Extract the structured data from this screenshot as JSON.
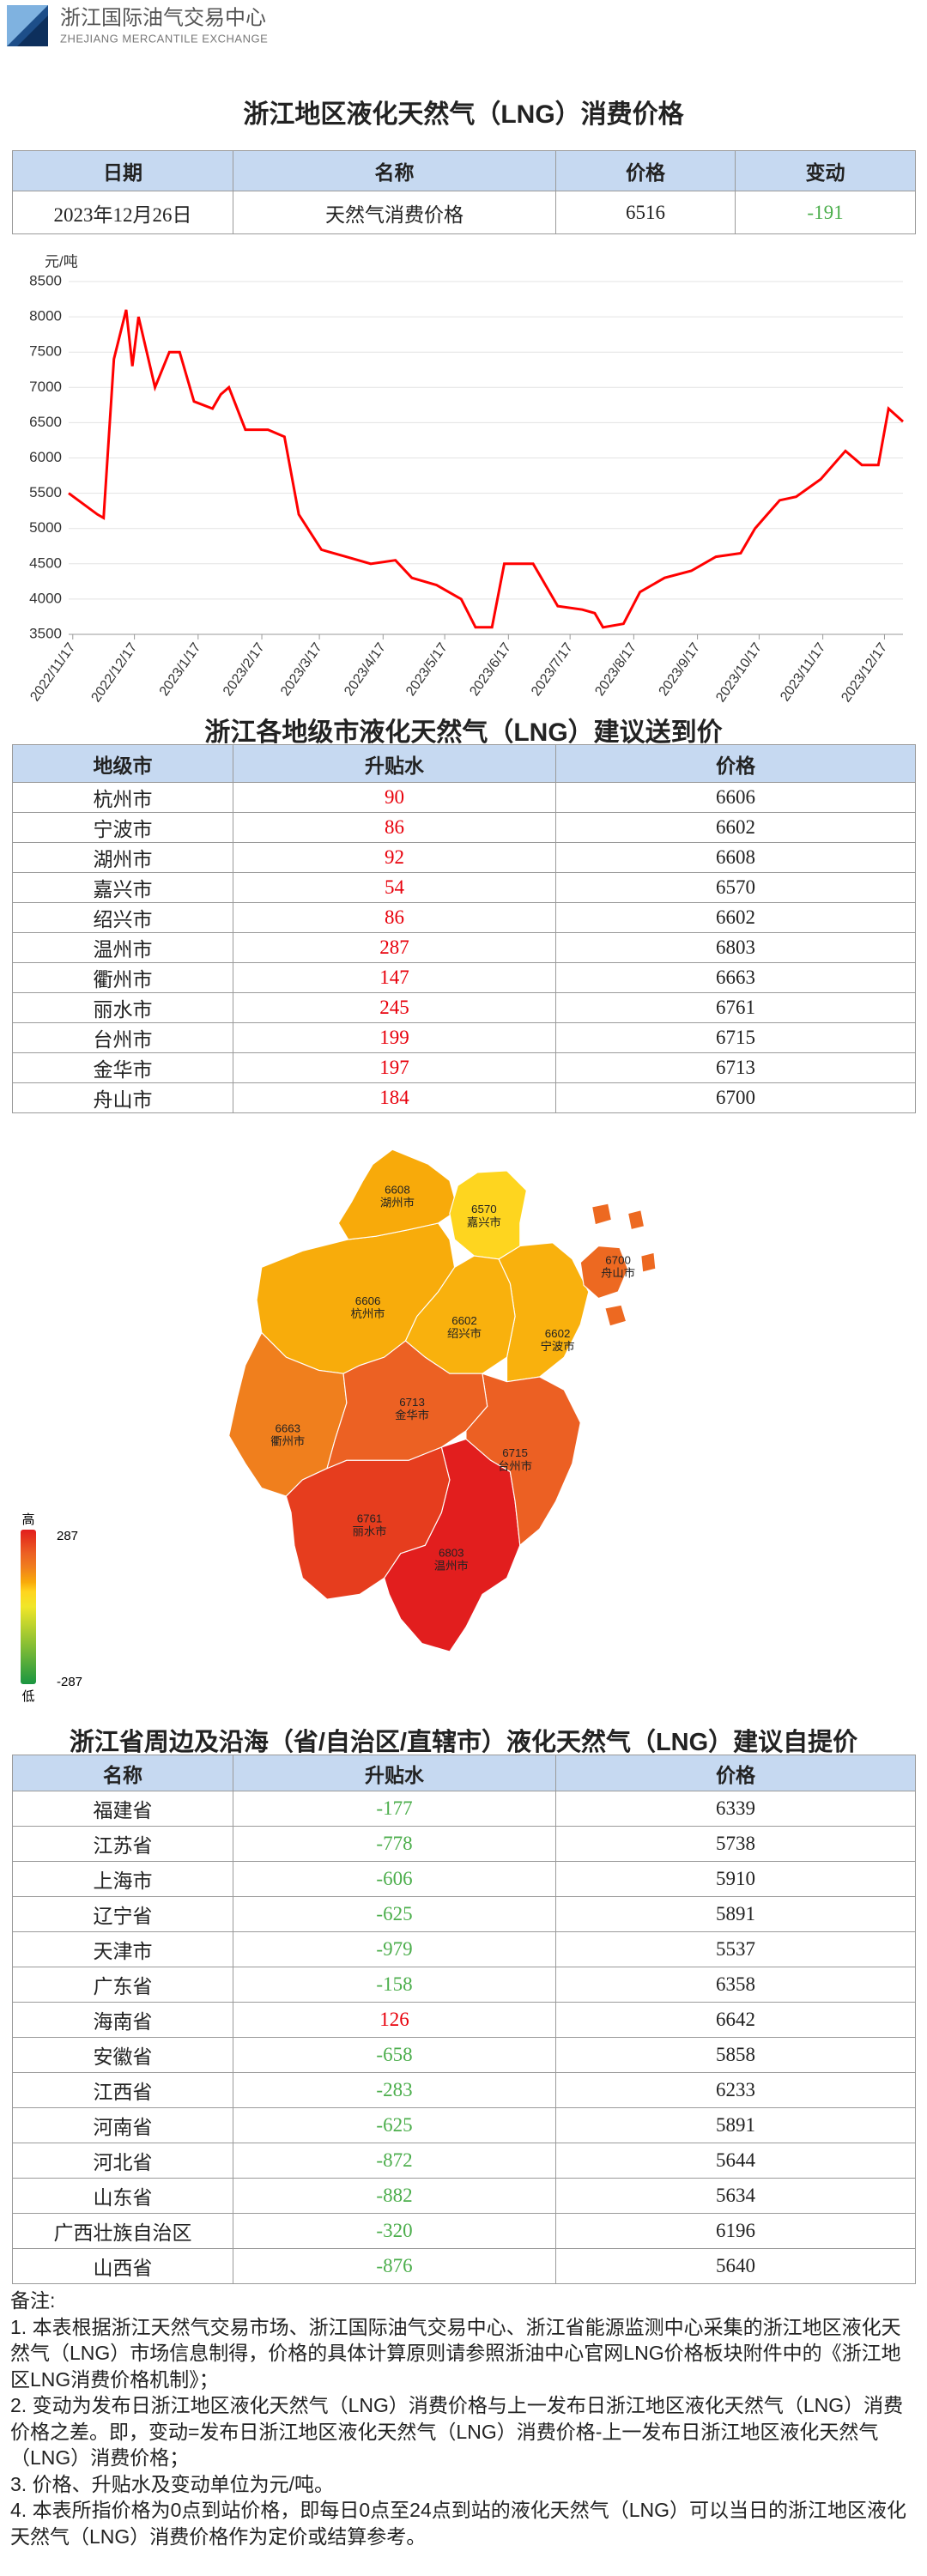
{
  "header": {
    "org_name": "浙江国际油气交易中心",
    "org_name_en": "ZHEJIANG MERCANTILE EXCHANGE"
  },
  "price_table": {
    "title": "浙江地区液化天然气（LNG）消费价格",
    "columns": [
      "日期",
      "名称",
      "价格",
      "变动"
    ],
    "rows": [
      [
        "2023年12月26日",
        "天然气消费价格",
        6516,
        -191
      ]
    ]
  },
  "chart_data": {
    "type": "line",
    "y_label": "元/吨",
    "color": "#ff0000",
    "grid": true,
    "x": [
      "2022/11/15",
      "2022/11/29",
      "2022/12/2",
      "2022/12/7",
      "2022/12/13",
      "2022/12/16",
      "2022/12/19",
      "2022/12/27",
      "2023/1/3",
      "2023/1/8",
      "2023/1/15",
      "2023/1/24",
      "2023/1/28",
      "2023/2/1",
      "2023/2/9",
      "2023/2/20",
      "2023/2/28",
      "2023/3/7",
      "2023/3/18",
      "2023/3/30",
      "2023/4/11",
      "2023/4/23",
      "2023/5/1",
      "2023/5/13",
      "2023/5/25",
      "2023/6/1",
      "2023/6/9",
      "2023/6/15",
      "2023/6/29",
      "2023/7/11",
      "2023/7/23",
      "2023/7/29",
      "2023/8/2",
      "2023/8/12",
      "2023/8/20",
      "2023/9/1",
      "2023/9/14",
      "2023/9/26",
      "2023/10/8",
      "2023/10/15",
      "2023/10/27",
      "2023/11/4",
      "2023/11/16",
      "2023/11/28",
      "2023/12/6",
      "2023/12/14",
      "2023/12/19",
      "2023/12/26"
    ],
    "values": [
      5500,
      5200,
      5150,
      7400,
      8100,
      7300,
      8000,
      7000,
      7500,
      7500,
      6800,
      6700,
      6900,
      7000,
      6400,
      6400,
      6300,
      5200,
      4700,
      4600,
      4500,
      4550,
      4300,
      4200,
      4000,
      3600,
      3600,
      4500,
      4500,
      3900,
      3850,
      3800,
      3600,
      3650,
      4100,
      4300,
      4400,
      4600,
      4650,
      5000,
      5400,
      5450,
      5700,
      6100,
      5900,
      5900,
      6700,
      6516
    ],
    "xlim": [
      "2022/11/15",
      "2023/12/26"
    ],
    "xticks": [
      "2022/11/17",
      "2022/12/17",
      "2023/1/17",
      "2023/2/17",
      "2023/3/17",
      "2023/4/17",
      "2023/5/17",
      "2023/6/17",
      "2023/7/17",
      "2023/8/17",
      "2023/9/17",
      "2023/10/17",
      "2023/11/17",
      "2023/12/17"
    ],
    "ylim": [
      3500,
      8500
    ],
    "yticks": [
      3500,
      4000,
      4500,
      5000,
      5500,
      6000,
      6500,
      7000,
      7500,
      8000,
      8500
    ]
  },
  "city_table": {
    "title": "浙江各地级市液化天然气（LNG）建议送到价",
    "columns": [
      "地级市",
      "升贴水",
      "价格"
    ],
    "rows": [
      [
        "杭州市",
        90,
        6606
      ],
      [
        "宁波市",
        86,
        6602
      ],
      [
        "湖州市",
        92,
        6608
      ],
      [
        "嘉兴市",
        54,
        6570
      ],
      [
        "绍兴市",
        86,
        6602
      ],
      [
        "温州市",
        287,
        6803
      ],
      [
        "衢州市",
        147,
        6663
      ],
      [
        "丽水市",
        245,
        6761
      ],
      [
        "台州市",
        199,
        6715
      ],
      [
        "金华市",
        197,
        6713
      ],
      [
        "舟山市",
        184,
        6700
      ]
    ]
  },
  "map": {
    "legend": {
      "high_label": "高",
      "low_label": "低",
      "max": 287,
      "min": -287
    }
  },
  "province_table": {
    "title": "浙江省周边及沿海（省/自治区/直辖市）液化天然气（LNG）建议自提价",
    "columns": [
      "名称",
      "升贴水",
      "价格"
    ],
    "rows": [
      [
        "福建省",
        -177,
        6339
      ],
      [
        "江苏省",
        -778,
        5738
      ],
      [
        "上海市",
        -606,
        5910
      ],
      [
        "辽宁省",
        -625,
        5891
      ],
      [
        "天津市",
        -979,
        5537
      ],
      [
        "广东省",
        -158,
        6358
      ],
      [
        "海南省",
        126,
        6642
      ],
      [
        "安徽省",
        -658,
        5858
      ],
      [
        "江西省",
        -283,
        6233
      ],
      [
        "河南省",
        -625,
        5891
      ],
      [
        "河北省",
        -872,
        5644
      ],
      [
        "山东省",
        -882,
        5634
      ],
      [
        "广西壮族自治区",
        -320,
        6196
      ],
      [
        "山西省",
        -876,
        5640
      ]
    ]
  },
  "notes": {
    "heading": "备注:",
    "items": [
      "1. 本表根据浙江天然气交易市场、浙江国际油气交易中心、浙江省能源监测中心采集的浙江地区液化天然气（LNG）市场信息制得，价格的具体计算原则请参照浙油中心官网LNG价格板块附件中的《浙江地区LNG消费价格机制》；",
      "2. 变动为发布日浙江地区液化天然气（LNG）消费价格与上一发布日浙江地区液化天然气（LNG）消费价格之差。即，变动=发布日浙江地区液化天然气（LNG）消费价格-上一发布日浙江地区液化天然气（LNG）消费价格；",
      "3. 价格、升贴水及变动单位为元/吨。",
      "4. 本表所指价格为0点到站价格，即每日0点至24点到站的液化天然气（LNG）可以当日的浙江地区液化天然气（LNG）消费价格作为定价或结算参考。"
    ]
  }
}
